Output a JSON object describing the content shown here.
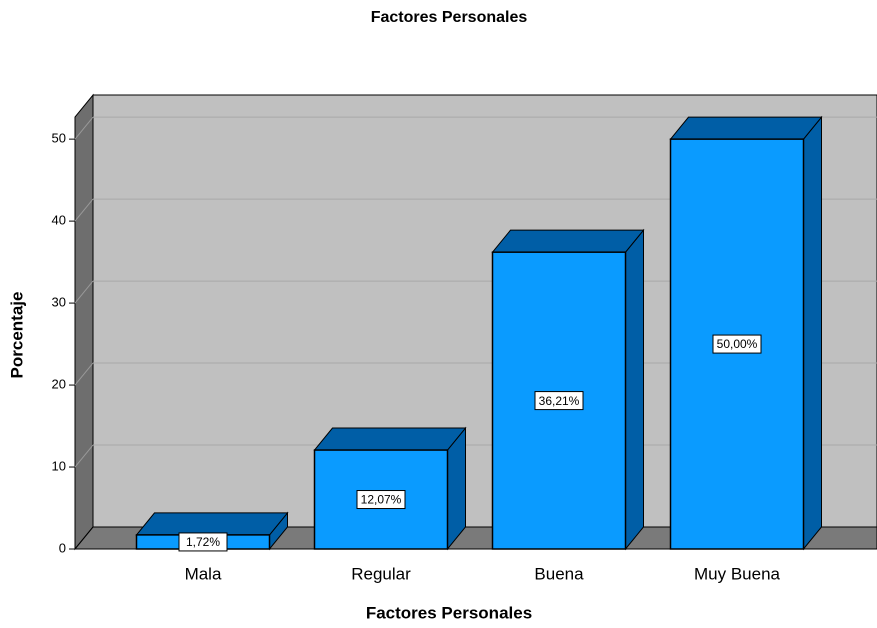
{
  "chart_data": {
    "type": "bar3d",
    "title": "Factores Personales",
    "x_label": "Factores Personales",
    "y_label": "Porcentaje",
    "categories": [
      "Mala",
      "Regular",
      "Buena",
      "Muy Buena"
    ],
    "values": [
      1.72,
      12.07,
      36.21,
      50.0
    ],
    "value_labels": [
      "1,72%",
      "12,07%",
      "36,21%",
      "50,00%"
    ],
    "color": "#0a9bff",
    "ylim": [
      0,
      52.7
    ],
    "yticks": [
      0,
      10,
      20,
      30,
      40,
      50
    ],
    "grid": true
  }
}
